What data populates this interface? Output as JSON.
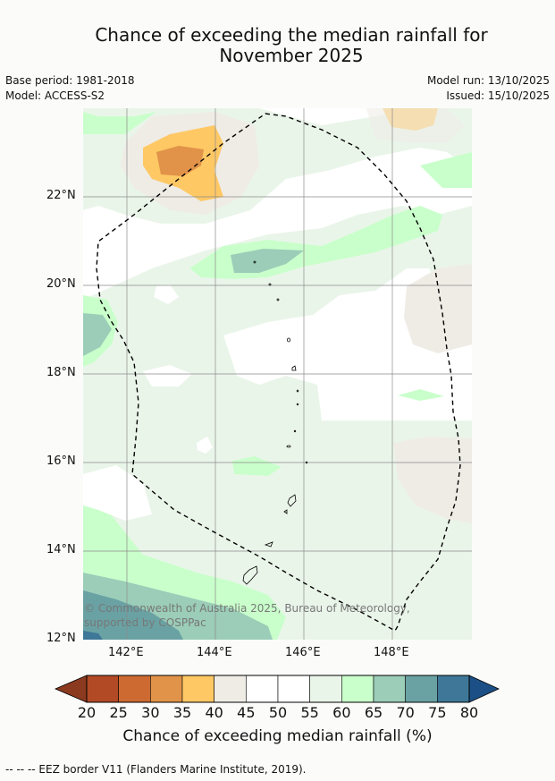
{
  "title_line1": "Chance of exceeding the median rainfall for",
  "title_line2": "November 2025",
  "meta": {
    "base_period": "Base period: 1981-2018",
    "model": "Model: ACCESS-S2",
    "model_run": "Model run: 13/10/2025",
    "issued": "Issued: 15/10/2025"
  },
  "map": {
    "lat_labels": [
      "22°N",
      "20°N",
      "18°N",
      "16°N",
      "14°N",
      "12°N"
    ],
    "lon_labels": [
      "142°E",
      "144°E",
      "146°E",
      "148°E"
    ],
    "copyright": "© Commonwealth of Australia 2025, Bureau of Meteorology, supported by COSPPac"
  },
  "colorbar": {
    "label": "Chance of exceeding median rainfall (%)",
    "ticks": [
      "20",
      "25",
      "30",
      "35",
      "40",
      "45",
      "50",
      "55",
      "60",
      "65",
      "70",
      "75",
      "80"
    ],
    "colors": [
      "#8b3a1f",
      "#b24a26",
      "#cd6a32",
      "#e19349",
      "#fec865",
      "#efece6",
      "#ffffff",
      "#ffffff",
      "#eaf5ea",
      "#c9ffcb",
      "#9bcdb8",
      "#6aa2a4",
      "#3e7797",
      "#1c4f85"
    ]
  },
  "eez_note": "--  --  -- EEZ border V11 (Flanders Marine Institute, 2019)."
}
